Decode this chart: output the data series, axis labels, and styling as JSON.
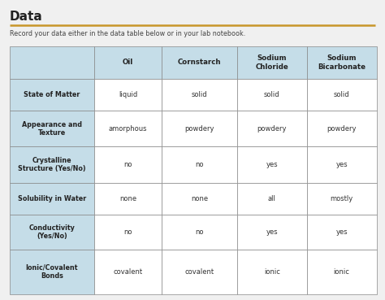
{
  "title": "Data",
  "subtitle": "Record your data either in the data table below or in your lab notebook.",
  "col_headers": [
    "Oil",
    "Cornstarch",
    "Sodium\nChloride",
    "Sodium\nBicarbonate"
  ],
  "row_headers": [
    "State of Matter",
    "Appearance and\nTexture",
    "Crystalline\nStructure (Yes/No)",
    "Solubility in Water",
    "Conductivity\n(Yes/No)",
    "Ionic/Covalent\nBonds"
  ],
  "data": [
    [
      "liquid",
      "solid",
      "solid",
      "solid"
    ],
    [
      "amorphous",
      "powdery",
      "powdery",
      "powdery"
    ],
    [
      "no",
      "no",
      "yes",
      "yes"
    ],
    [
      "none",
      "none",
      "all",
      "mostly"
    ],
    [
      "no",
      "no",
      "yes",
      "yes"
    ],
    [
      "covalent",
      "covalent",
      "ionic",
      "ionic"
    ]
  ],
  "header_bg": "#c5dde8",
  "row_header_bg": "#c5dde8",
  "data_bg": "#ffffff",
  "border_color": "#888888",
  "title_color": "#222222",
  "subtitle_color": "#444444",
  "header_text_color": "#222222",
  "data_text_color": "#333333",
  "title_line_color": "#c8962a",
  "background_color": "#f0f0f0",
  "fig_width": 4.74,
  "fig_height": 3.69,
  "dpi": 100
}
